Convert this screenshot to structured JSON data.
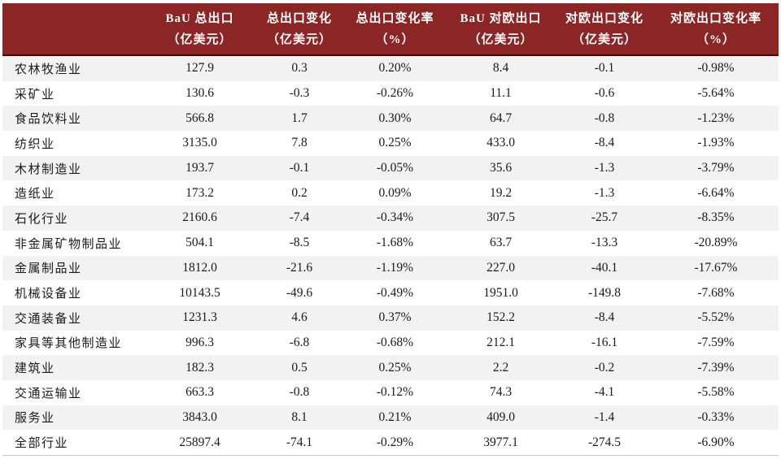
{
  "table": {
    "header_bg": "#8C2626",
    "header_text_color": "#FFFFFF",
    "stripe_bg": "#F2F2F2",
    "columns": [
      {
        "line1": "",
        "line2": ""
      },
      {
        "line1": "BaU 总出口",
        "line2": "（亿美元）"
      },
      {
        "line1": "总出口变化",
        "line2": "（亿美元）"
      },
      {
        "line1": "总出口变化率",
        "line2": "（%）"
      },
      {
        "line1": "BaU 对欧出口",
        "line2": "（亿美元）"
      },
      {
        "line1": "对欧出口变化",
        "line2": "（亿美元）"
      },
      {
        "line1": "对欧出口变化率",
        "line2": "（%）"
      }
    ],
    "rows": [
      [
        "农林牧渔业",
        "127.9",
        "0.3",
        "0.20%",
        "8.4",
        "-0.1",
        "-0.98%"
      ],
      [
        "采矿业",
        "130.6",
        "-0.3",
        "-0.26%",
        "11.1",
        "-0.6",
        "-5.64%"
      ],
      [
        "食品饮料业",
        "566.8",
        "1.7",
        "0.30%",
        "64.7",
        "-0.8",
        "-1.23%"
      ],
      [
        "纺织业",
        "3135.0",
        "7.8",
        "0.25%",
        "433.0",
        "-8.4",
        "-1.93%"
      ],
      [
        "木材制造业",
        "193.7",
        "-0.1",
        "-0.05%",
        "35.6",
        "-1.3",
        "-3.79%"
      ],
      [
        "造纸业",
        "173.2",
        "0.2",
        "0.09%",
        "19.2",
        "-1.3",
        "-6.64%"
      ],
      [
        "石化行业",
        "2160.6",
        "-7.4",
        "-0.34%",
        "307.5",
        "-25.7",
        "-8.35%"
      ],
      [
        "非金属矿物制品业",
        "504.1",
        "-8.5",
        "-1.68%",
        "63.7",
        "-13.3",
        "-20.89%"
      ],
      [
        "金属制品业",
        "1812.0",
        "-21.6",
        "-1.19%",
        "227.0",
        "-40.1",
        "-17.67%"
      ],
      [
        "机械设备业",
        "10143.5",
        "-49.6",
        "-0.49%",
        "1951.0",
        "-149.8",
        "-7.68%"
      ],
      [
        "交通装备业",
        "1231.3",
        "4.6",
        "0.37%",
        "152.2",
        "-8.4",
        "-5.52%"
      ],
      [
        "家具等其他制造业",
        "996.3",
        "-6.8",
        "-0.68%",
        "212.1",
        "-16.1",
        "-7.59%"
      ],
      [
        "建筑业",
        "182.3",
        "0.5",
        "0.25%",
        "2.2",
        "-0.2",
        "-7.39%"
      ],
      [
        "交通运输业",
        "663.3",
        "-0.8",
        "-0.12%",
        "74.3",
        "-4.1",
        "-5.58%"
      ],
      [
        "服务业",
        "3843.0",
        "8.1",
        "0.21%",
        "409.0",
        "-1.4",
        "-0.33%"
      ],
      [
        "全部行业",
        "25897.4",
        "-74.1",
        "-0.29%",
        "3977.1",
        "-274.5",
        "-6.90%"
      ]
    ]
  }
}
